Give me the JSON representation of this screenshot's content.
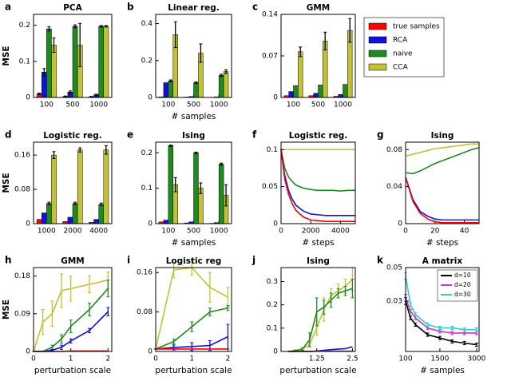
{
  "chart_data": [
    {
      "type": "bar",
      "label": "a",
      "title": "PCA",
      "ylabel": "MSE",
      "categories": [
        "100",
        "500",
        "1000"
      ],
      "ylim": [
        0,
        0.23
      ],
      "yticks": [
        0,
        0.1,
        0.2
      ],
      "series": [
        {
          "name": "true samples",
          "color": "#ff0000",
          "values": [
            0.01,
            0.003,
            0.002
          ],
          "errors": [
            0.002,
            0.001,
            0.001
          ]
        },
        {
          "name": "RCA",
          "color": "#1010e0",
          "values": [
            0.07,
            0.015,
            0.007
          ],
          "errors": [
            0.01,
            0.003,
            0.002
          ]
        },
        {
          "name": "naive",
          "color": "#1e8b1e",
          "values": [
            0.19,
            0.197,
            0.197
          ],
          "errors": [
            0.006,
            0.004,
            0.002
          ]
        },
        {
          "name": "CCA",
          "color": "#c2c234",
          "values": [
            0.145,
            0.145,
            0.197
          ],
          "errors": [
            0.02,
            0.06,
            0.002
          ]
        }
      ]
    },
    {
      "type": "bar",
      "label": "b",
      "title": "Linear reg.",
      "categories": [
        "100",
        "500",
        "1000"
      ],
      "xlabel": "# samples",
      "ylim": [
        0,
        0.45
      ],
      "yticks": [
        0,
        0.2,
        0.4
      ],
      "series": [
        {
          "color": "#ff0000",
          "values": [
            0.003,
            0.002,
            0.001
          ]
        },
        {
          "color": "#1010e0",
          "values": [
            0.08,
            0.005,
            0.003
          ]
        },
        {
          "color": "#1e8b1e",
          "values": [
            0.09,
            0.08,
            0.12
          ],
          "errors": [
            0.005,
            0.004,
            0.006
          ]
        },
        {
          "color": "#c2c234",
          "values": [
            0.34,
            0.24,
            0.14
          ],
          "errors": [
            0.07,
            0.05,
            0.01
          ]
        }
      ]
    },
    {
      "type": "bar",
      "label": "c",
      "title": "GMM",
      "categories": [
        "100",
        "500",
        "1000"
      ],
      "ylim": [
        0,
        0.14
      ],
      "yticks": [
        0,
        0.07,
        0.14
      ],
      "series": [
        {
          "color": "#ff0000",
          "values": [
            0.003,
            0.003,
            0.002
          ]
        },
        {
          "color": "#1010e0",
          "values": [
            0.01,
            0.007,
            0.005
          ]
        },
        {
          "color": "#1e8b1e",
          "values": [
            0.02,
            0.021,
            0.022
          ]
        },
        {
          "color": "#c2c234",
          "values": [
            0.077,
            0.095,
            0.113
          ],
          "errors": [
            0.008,
            0.015,
            0.02
          ]
        }
      ]
    },
    {
      "type": "bar",
      "label": "d",
      "title": "Logistic reg.",
      "ylabel": "MSE",
      "categories": [
        "1000",
        "2000",
        "4000"
      ],
      "ylim": [
        0,
        0.19
      ],
      "yticks": [
        0,
        0.08,
        0.16
      ],
      "series": [
        {
          "color": "#ff0000",
          "values": [
            0.01,
            0.005,
            0.003
          ]
        },
        {
          "color": "#1010e0",
          "values": [
            0.025,
            0.015,
            0.01
          ]
        },
        {
          "color": "#1e8b1e",
          "values": [
            0.047,
            0.047,
            0.045
          ],
          "errors": [
            0.003,
            0.003,
            0.003
          ]
        },
        {
          "color": "#c2c234",
          "values": [
            0.16,
            0.172,
            0.172
          ],
          "errors": [
            0.008,
            0.005,
            0.01
          ]
        }
      ]
    },
    {
      "type": "bar",
      "label": "e",
      "title": "Ising",
      "categories": [
        "100",
        "500",
        "1000"
      ],
      "xlabel": "# samples",
      "ylim": [
        0,
        0.23
      ],
      "yticks": [
        0,
        0.1,
        0.2
      ],
      "series": [
        {
          "color": "#ff0000",
          "values": [
            0.005,
            0.002,
            0.001
          ]
        },
        {
          "color": "#1010e0",
          "values": [
            0.01,
            0.005,
            0.003
          ]
        },
        {
          "color": "#1e8b1e",
          "values": [
            0.22,
            0.2,
            0.168
          ],
          "errors": [
            0.002,
            0.002,
            0.003
          ]
        },
        {
          "color": "#c2c234",
          "values": [
            0.11,
            0.1,
            0.08
          ],
          "errors": [
            0.02,
            0.015,
            0.03
          ]
        }
      ]
    },
    {
      "type": "line",
      "label": "f",
      "title": "Logistic reg.",
      "xlabel": "# steps",
      "xlim": [
        0,
        5000
      ],
      "xticks": [
        0,
        2000,
        4000
      ],
      "ylim": [
        0,
        0.11
      ],
      "yticks": [
        0,
        0.05,
        0.1
      ],
      "x": [
        0,
        250,
        500,
        750,
        1000,
        1500,
        2000,
        2500,
        3000,
        3500,
        4000,
        4500,
        5000
      ],
      "series": [
        {
          "color": "#c2c234",
          "values": [
            0.1,
            0.1,
            0.1,
            0.1,
            0.1,
            0.1,
            0.1,
            0.1,
            0.1,
            0.1,
            0.1,
            0.1,
            0.1
          ]
        },
        {
          "color": "#1e8b1e",
          "values": [
            0.1,
            0.075,
            0.063,
            0.057,
            0.052,
            0.048,
            0.046,
            0.045,
            0.045,
            0.045,
            0.044,
            0.045,
            0.045
          ]
        },
        {
          "color": "#1010e0",
          "values": [
            0.1,
            0.065,
            0.045,
            0.033,
            0.025,
            0.017,
            0.013,
            0.012,
            0.011,
            0.011,
            0.011,
            0.011,
            0.011
          ]
        },
        {
          "color": "#ff0000",
          "values": [
            0.1,
            0.06,
            0.04,
            0.027,
            0.018,
            0.009,
            0.005,
            0.004,
            0.003,
            0.003,
            0.003,
            0.003,
            0.003
          ]
        }
      ]
    },
    {
      "type": "line",
      "label": "g",
      "title": "Ising",
      "xlabel": "# steps",
      "xlim": [
        0,
        50
      ],
      "xticks": [
        0,
        20,
        40
      ],
      "ylim": [
        0,
        0.088
      ],
      "yticks": [
        0,
        0.04,
        0.08
      ],
      "x": [
        0,
        5,
        10,
        15,
        20,
        25,
        30,
        35,
        40,
        45,
        50
      ],
      "series": [
        {
          "color": "#c2c234",
          "values": [
            0.073,
            0.075,
            0.077,
            0.079,
            0.081,
            0.082,
            0.083,
            0.084,
            0.085,
            0.086,
            0.086
          ]
        },
        {
          "color": "#1e8b1e",
          "values": [
            0.055,
            0.054,
            0.057,
            0.061,
            0.065,
            0.068,
            0.071,
            0.074,
            0.077,
            0.08,
            0.082
          ]
        },
        {
          "color": "#1010e0",
          "values": [
            0.05,
            0.026,
            0.013,
            0.008,
            0.005,
            0.004,
            0.004,
            0.004,
            0.004,
            0.004,
            0.004
          ]
        },
        {
          "color": "#ff0000",
          "values": [
            0.05,
            0.024,
            0.011,
            0.005,
            0.002,
            0.001,
            0.001,
            0.001,
            0.001,
            0.001,
            0.001
          ]
        }
      ]
    },
    {
      "type": "line",
      "label": "h",
      "title": "GMM",
      "ylabel": "MSE",
      "xlabel": "perturbation scale",
      "xlim": [
        0,
        2.1
      ],
      "xticks": [
        0,
        1,
        2
      ],
      "ylim": [
        0,
        0.2
      ],
      "yticks": [
        0,
        0.09,
        0.18
      ],
      "x": [
        0,
        0.25,
        0.5,
        0.75,
        1,
        1.5,
        2
      ],
      "series": [
        {
          "color": "#c2c234",
          "values": [
            0,
            0.07,
            0.09,
            0.145,
            0.15,
            0.16,
            0.17
          ],
          "errors": [
            0,
            0.03,
            0.03,
            0.04,
            0.03,
            0.02,
            0.02
          ]
        },
        {
          "color": "#1e8b1e",
          "values": [
            0,
            0,
            0.01,
            0.03,
            0.06,
            0.1,
            0.15
          ],
          "errors": [
            0,
            0,
            0.005,
            0.01,
            0.015,
            0.015,
            0.02
          ]
        },
        {
          "color": "#1010e0",
          "values": [
            0,
            0,
            0.003,
            0.01,
            0.025,
            0.05,
            0.095
          ],
          "errors": [
            0,
            0,
            0.002,
            0.005,
            0.005,
            0.005,
            0.01
          ]
        },
        {
          "color": "#ff0000",
          "values": [
            0,
            0,
            0,
            0,
            0.001,
            0.001,
            0.001
          ]
        }
      ]
    },
    {
      "type": "line",
      "label": "i",
      "title": "Logistic reg",
      "xlabel": "perturbation scale",
      "xlim": [
        0,
        2.1
      ],
      "xticks": [
        0,
        1,
        2
      ],
      "ylim": [
        0,
        0.17
      ],
      "yticks": [
        0,
        0.08,
        0.16
      ],
      "x": [
        0,
        0.5,
        1,
        1.5,
        2
      ],
      "series": [
        {
          "color": "#c2c234",
          "values": [
            0.005,
            0.165,
            0.17,
            0.13,
            0.11
          ],
          "errors": [
            0,
            0.015,
            0.015,
            0.03,
            0.02
          ]
        },
        {
          "color": "#1e8b1e",
          "values": [
            0.005,
            0.02,
            0.05,
            0.08,
            0.088
          ],
          "errors": [
            0,
            0.005,
            0.01,
            0.008,
            0.005
          ]
        },
        {
          "color": "#1010e0",
          "values": [
            0.005,
            0.008,
            0.01,
            0.012,
            0.03
          ],
          "errors": [
            0,
            0.005,
            0.008,
            0.01,
            0.025
          ]
        },
        {
          "color": "#ff0000",
          "values": [
            0.005,
            0.005,
            0.005,
            0.005,
            0.005
          ]
        }
      ]
    },
    {
      "type": "line",
      "label": "j",
      "title": "Ising",
      "xlabel": "perturbation scale",
      "xlim": [
        0,
        2.6
      ],
      "xticks": [
        1.25,
        2.5
      ],
      "ylim": [
        0,
        0.36
      ],
      "yticks": [
        0,
        0.1,
        0.2,
        0.3
      ],
      "x": [
        0.25,
        0.5,
        0.75,
        1,
        1.25,
        1.5,
        1.75,
        2,
        2.25,
        2.5
      ],
      "series": [
        {
          "color": "#c2c234",
          "values": [
            0,
            0.005,
            0.01,
            0.03,
            0.1,
            0.18,
            0.24,
            0.26,
            0.28,
            0.31
          ],
          "errors": [
            0,
            0.003,
            0.005,
            0.01,
            0.03,
            0.05,
            0.03,
            0.03,
            0.03,
            0.05
          ]
        },
        {
          "color": "#1e8b1e",
          "values": [
            0,
            0.003,
            0.01,
            0.05,
            0.17,
            0.19,
            0.22,
            0.25,
            0.26,
            0.27
          ],
          "errors": [
            0,
            0.002,
            0.005,
            0.03,
            0.06,
            0.03,
            0.03,
            0.02,
            0.02,
            0.04
          ]
        },
        {
          "color": "#1010e0",
          "values": [
            0,
            0,
            0,
            0,
            0.002,
            0.005,
            0.008,
            0.01,
            0.012,
            0.02
          ]
        },
        {
          "color": "#ff0000",
          "values": [
            0,
            0,
            0,
            0,
            0.001,
            0.001,
            0.001,
            0.001,
            0.001,
            0.001
          ]
        }
      ]
    },
    {
      "type": "line",
      "label": "k",
      "title": "A matrix",
      "xlabel": "# samples",
      "legend": "upper right",
      "xlim": [
        100,
        3100
      ],
      "xticks": [
        100,
        1500,
        3000
      ],
      "ylim": [
        0,
        0.05
      ],
      "yticks": [
        0.03,
        0.05
      ],
      "x": [
        100,
        300,
        500,
        1000,
        1500,
        2000,
        2500,
        3000
      ],
      "series": [
        {
          "name": "d=10",
          "color": "#000000",
          "values": [
            0.03,
            0.02,
            0.016,
            0.01,
            0.008,
            0.006,
            0.005,
            0.004
          ],
          "errors": [
            0.002,
            0.001,
            0.001,
            0.001,
            0.001,
            0.001,
            0.001,
            0.001
          ]
        },
        {
          "name": "d=20",
          "color": "#cc33cc",
          "values": [
            0.032,
            0.024,
            0.02,
            0.014,
            0.012,
            0.011,
            0.011,
            0.011
          ],
          "errors": [
            0.002,
            0.001,
            0.001,
            0.001,
            0.001,
            0.001,
            0.001,
            0.001
          ]
        },
        {
          "name": "d=30",
          "color": "#33cccc",
          "values": [
            0.045,
            0.028,
            0.022,
            0.016,
            0.014,
            0.014,
            0.013,
            0.013
          ],
          "errors": [
            0.002,
            0.001,
            0.001,
            0.001,
            0.001,
            0.001,
            0.001,
            0.001
          ]
        }
      ]
    }
  ]
}
